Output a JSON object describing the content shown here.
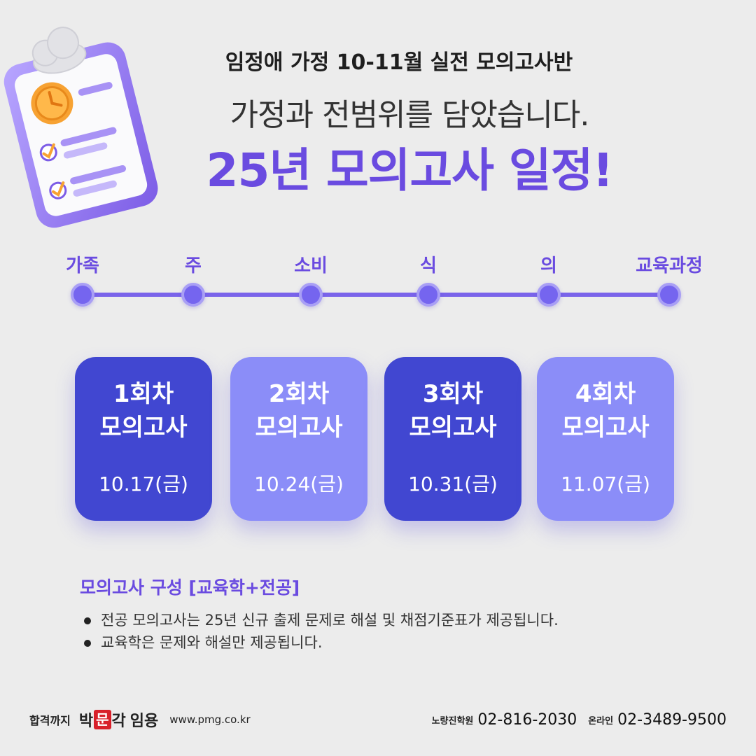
{
  "header": {
    "subtitle": "임정애 가정 10-11월 실전 모의고사반",
    "line": "가정과 전범위를 담았습니다.",
    "title": "25년 모의고사 일정!"
  },
  "timeline": {
    "steps": [
      {
        "label": "가족"
      },
      {
        "label": "주"
      },
      {
        "label": "소비"
      },
      {
        "label": "식"
      },
      {
        "label": "의"
      },
      {
        "label": "교육과정"
      }
    ]
  },
  "cards": [
    {
      "round": "1회차",
      "exam": "모의고사",
      "date": "10.17(금)",
      "style": "dark"
    },
    {
      "round": "2회차",
      "exam": "모의고사",
      "date": "10.24(금)",
      "style": "light"
    },
    {
      "round": "3회차",
      "exam": "모의고사",
      "date": "10.31(금)",
      "style": "dark"
    },
    {
      "round": "4회차",
      "exam": "모의고사",
      "date": "11.07(금)",
      "style": "light"
    }
  ],
  "composition": {
    "title": "모의고사 구성 [교육학+전공]",
    "items": [
      "전공 모의고사는 25년 신규 출제 문제로 해설 및 채점기준표가 제공됩니다.",
      "교육학은 문제와 해설만 제공됩니다."
    ]
  },
  "footer": {
    "tagline": "합격까지",
    "brand_pre": "박",
    "brand_mark": "문",
    "brand_post": "각",
    "brand_sub": "임용",
    "url": "www.pmg.co.kr",
    "contacts": [
      {
        "label": "노량진학원",
        "phone": "02-816-2030"
      },
      {
        "label": "온라인",
        "phone": "02-3489-9500"
      }
    ]
  },
  "colors": {
    "accent": "#6a4be0",
    "card_dark": "#4147d1",
    "card_light": "#8b8df8",
    "brand_red": "#d8202a"
  },
  "icons": {
    "illustration": "clipboard-clock-checklist-icon"
  }
}
